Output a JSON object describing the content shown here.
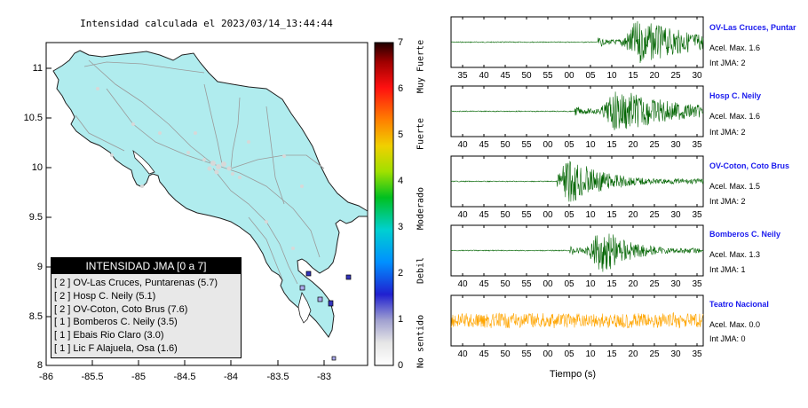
{
  "map": {
    "title": "Intensidad calculada el 2023/03/14_13:44:44",
    "x_ticks": [
      "-86",
      "-85.5",
      "-85",
      "-84.5",
      "-84",
      "-83.5",
      "-83"
    ],
    "y_ticks": [
      "11",
      "10.5",
      "10",
      "9.5",
      "9",
      "8.5",
      "8"
    ],
    "colors": {
      "land": "#b0ecee",
      "coast": "#202020",
      "roads": "#9a9a9a",
      "station": "#5555cc"
    }
  },
  "legend": {
    "title": "INTENSIDAD JMA [0 a 7]",
    "items": [
      "[ 2 ]  OV-Las Cruces, Puntarenas (5.7)",
      "[ 2 ]  Hosp C. Neily (5.1)",
      "[ 2 ]  OV-Coton, Coto Brus (7.6)",
      "[ 1 ]  Bomberos C. Neily (3.5)",
      "[ 1 ]  Ebais Rio Claro (3.0)",
      "[ 1 ]  Lic F Alajuela, Osa (1.6)"
    ]
  },
  "colorbar": {
    "ticks": [
      "7",
      "6",
      "5",
      "4",
      "3",
      "2",
      "1",
      "0"
    ],
    "labels": [
      "Muy Fuerte",
      "Fuerte",
      "Moderado",
      "Debil",
      "No sentido"
    ]
  },
  "traces": {
    "xlabel": "Tiempo (s)",
    "stations": [
      {
        "name": "OV-Las Cruces, Puntar",
        "acel": "Acel. Max. 1.6",
        "int": "Int JMA: 2",
        "ticks": [
          "35",
          "40",
          "45",
          "50",
          "55",
          "00",
          "05",
          "10",
          "15",
          "20",
          "25",
          "30"
        ],
        "color": "#006400",
        "onset": 0.58,
        "peak": 0.75,
        "amp": 0.95,
        "noise": 0.02,
        "decay": 0.25
      },
      {
        "name": "Hosp C. Neily",
        "acel": "Acel. Max. 1.6",
        "int": "Int JMA: 2",
        "ticks": [
          "40",
          "45",
          "50",
          "55",
          "00",
          "05",
          "10",
          "15",
          "20",
          "25",
          "30",
          "35"
        ],
        "color": "#006400",
        "onset": 0.49,
        "peak": 0.67,
        "amp": 0.95,
        "noise": 0.02,
        "decay": 0.25
      },
      {
        "name": "OV-Coton, Coto Brus",
        "acel": "Acel. Max. 1.5",
        "int": "Int JMA: 2",
        "ticks": [
          "40",
          "45",
          "50",
          "55",
          "00",
          "05",
          "10",
          "15",
          "20",
          "25",
          "30",
          "35"
        ],
        "color": "#006400",
        "onset": 0.42,
        "peak": 0.48,
        "amp": 0.95,
        "noise": 0.02,
        "decay": 0.15
      },
      {
        "name": "Bomberos C. Neily",
        "acel": "Acel. Max. 1.3",
        "int": "Int JMA: 1",
        "ticks": [
          "40",
          "45",
          "50",
          "55",
          "00",
          "05",
          "10",
          "15",
          "20",
          "25",
          "30",
          "35"
        ],
        "color": "#006400",
        "onset": 0.47,
        "peak": 0.61,
        "amp": 0.95,
        "noise": 0.02,
        "decay": 0.12
      },
      {
        "name": "Teatro Nacional",
        "acel": "Acel. Max. 0.0",
        "int": "Int JMA: 0",
        "ticks": [
          "40",
          "45",
          "50",
          "55",
          "00",
          "05",
          "10",
          "15",
          "20",
          "25",
          "30",
          "35"
        ],
        "color": "#ffa500",
        "onset": 0.0,
        "peak": 0.89,
        "amp": 0.35,
        "noise": 0.32,
        "decay": 0.03
      }
    ]
  }
}
